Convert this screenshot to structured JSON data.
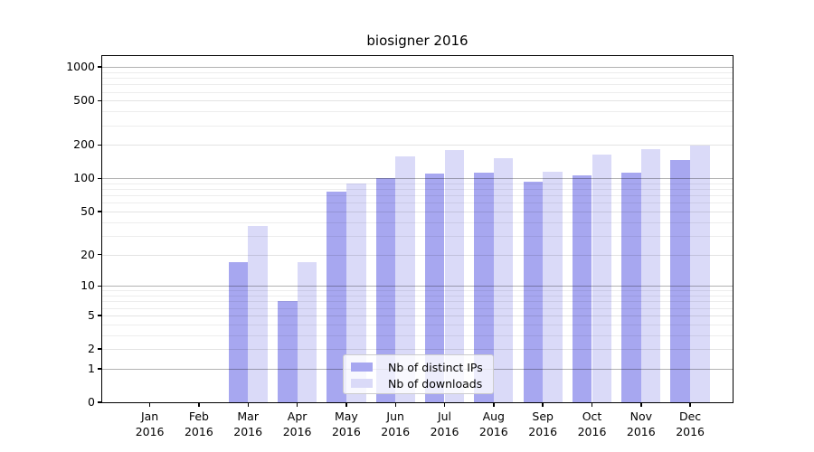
{
  "figure": {
    "title": "biosigner 2016"
  },
  "chart_data": {
    "type": "bar",
    "title": "biosigner 2016",
    "categories": [
      "Jan 2016",
      "Feb 2016",
      "Mar 2016",
      "Apr 2016",
      "May 2016",
      "Jun 2016",
      "Jul 2016",
      "Aug 2016",
      "Sep 2016",
      "Oct 2016",
      "Nov 2016",
      "Dec 2016"
    ],
    "series": [
      {
        "name": "Nb of distinct IPs",
        "color": "#a7a7f0",
        "values": [
          0,
          0,
          17,
          7,
          76,
          100,
          110,
          112,
          93,
          106,
          112,
          147
        ]
      },
      {
        "name": "Nb of downloads",
        "color": "#dadaf8",
        "values": [
          0,
          0,
          37,
          17,
          90,
          159,
          180,
          152,
          115,
          165,
          185,
          197
        ]
      }
    ],
    "xlabel": "",
    "ylabel": "",
    "yscale": "symlog-log10(1+v)",
    "yticks": [
      0,
      1,
      2,
      5,
      10,
      20,
      50,
      100,
      200,
      500,
      1000
    ],
    "ytick_labels": [
      "0",
      "1",
      "2",
      "5",
      "10",
      "20",
      "50",
      "100",
      "200",
      "500",
      "1000"
    ],
    "minor_grid_labeled": [
      2,
      5,
      20,
      50,
      200,
      500
    ],
    "minor_grid_unlabeled": [
      3,
      4,
      6,
      7,
      8,
      9,
      30,
      40,
      60,
      70,
      80,
      90,
      300,
      400,
      600,
      700,
      800,
      900
    ],
    "ylim": [
      0,
      1250
    ],
    "grid": true,
    "legend": {
      "position": "lower center",
      "items": [
        "Nb of distinct IPs",
        "Nb of downloads"
      ]
    }
  },
  "colors": {
    "bar_distinct_ips": "#a7a7f0",
    "bar_downloads": "#dadaf8",
    "grid_major": "#b3b3b3",
    "grid_minor": "#e6e6e6",
    "axis": "#000000",
    "legend_border": "#cccccc",
    "background": "#ffffff",
    "text": "#000000"
  }
}
